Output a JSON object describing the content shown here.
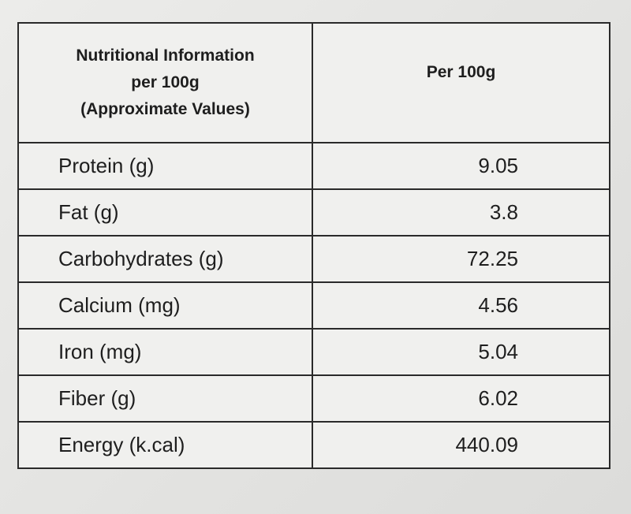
{
  "table": {
    "header": [
      [
        "Nutritional Information",
        "per 100g",
        "(Approximate Values)"
      ],
      "Per 100g"
    ],
    "rows": [
      [
        "Protein (g)",
        "9.05"
      ],
      [
        "Fat (g)",
        "3.8"
      ],
      [
        "Carbohydrates (g)",
        "72.25"
      ],
      [
        "Calcium (mg)",
        "4.56"
      ],
      [
        "Iron (mg)",
        "5.04"
      ],
      [
        "Fiber (g)",
        "6.02"
      ],
      [
        "Energy (k.cal)",
        "440.09"
      ]
    ]
  }
}
